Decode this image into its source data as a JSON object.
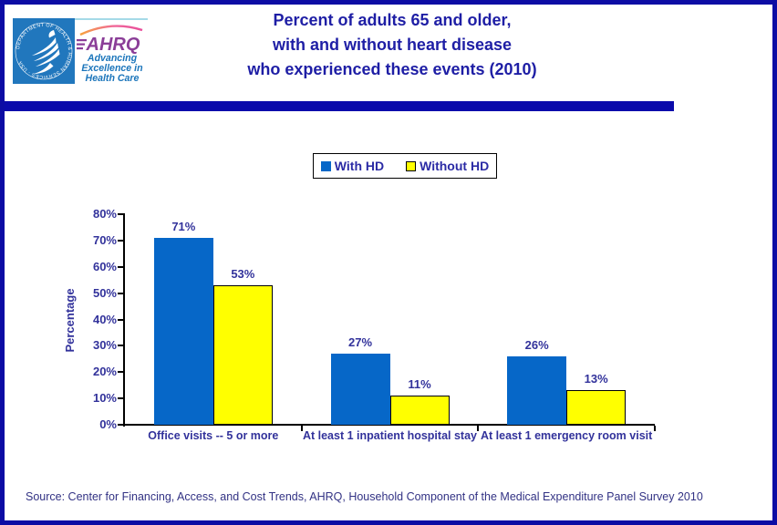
{
  "page": {
    "title_lines": [
      "Percent of adults 65 and older,",
      "with and without heart disease",
      "who experienced these events (2010)"
    ],
    "source": "Source: Center for Financing, Access, and Cost Trends, AHRQ, Household Component of the Medical Expenditure Panel Survey 2010"
  },
  "logo": {
    "hhs_ring_text": "DEPARTMENT OF HEALTH & HUMAN SERVICES · USA",
    "ahrq_acronym": "AHRQ",
    "ahrq_tagline_lines": [
      "Advancing",
      "Excellence in",
      "Health Care"
    ],
    "colors": {
      "hhs_blue": "#2177BD",
      "ahrq_purple": "#8B3E98",
      "ahrq_blue": "#1B75BB"
    }
  },
  "legend": {
    "items": [
      {
        "label": "With HD"
      },
      {
        "label": "Without HD"
      }
    ]
  },
  "chart_data": {
    "type": "bar",
    "title": "Percent of adults 65 and older, with and without heart disease who experienced these events (2010)",
    "categories": [
      "Office visits -- 5 or more",
      "At least 1 inpatient hospital stay",
      "At least 1 emergency room visit"
    ],
    "series": [
      {
        "name": "With HD",
        "color": "#0667C8",
        "border": "none",
        "values": [
          71,
          27,
          26
        ]
      },
      {
        "name": "Without HD",
        "color": "#FFFF00",
        "border": "#000000",
        "values": [
          53,
          11,
          13
        ]
      }
    ],
    "xlabel": "",
    "ylabel": "Percentage",
    "ylim": [
      0,
      80
    ],
    "ytick_step": 10,
    "tick_suffix": "%",
    "value_label_suffix": "%",
    "grid": false,
    "legend_position": "top-center",
    "value_labels": true
  },
  "colors": {
    "page_border_navy": "#0c0ca4",
    "divider_navy": "#0b0bab",
    "title_navy": "#1e1ea5",
    "chart_text_navy": "#32329b",
    "bar_blue": "#0667C8",
    "bar_yellow": "#FFFF00"
  }
}
